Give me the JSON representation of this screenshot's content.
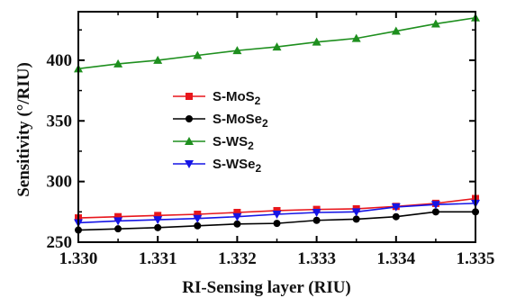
{
  "chart_data": {
    "type": "line",
    "xlabel": "RI-Sensing layer (RIU)",
    "ylabel": "Sensitivity (°/RIU)",
    "xlim": [
      1.33,
      1.335
    ],
    "ylim": [
      250,
      440
    ],
    "x_ticks": [
      "1.330",
      "1.331",
      "1.332",
      "1.333",
      "1.334",
      "1.335"
    ],
    "y_ticks": [
      "250",
      "300",
      "350",
      "400"
    ],
    "legend_position": "center-left",
    "x": [
      1.33,
      1.3305,
      1.331,
      1.3315,
      1.332,
      1.3325,
      1.333,
      1.3335,
      1.334,
      1.3345,
      1.335
    ],
    "series": [
      {
        "name": "S-MoS",
        "subscript": "2",
        "color": "#e8161c",
        "marker": "square",
        "values": [
          270,
          271,
          272,
          273,
          274.5,
          276,
          277,
          277.5,
          279.5,
          282,
          286
        ]
      },
      {
        "name": "S-MoSe",
        "subscript": "2",
        "color": "#000000",
        "marker": "circle",
        "values": [
          260,
          261,
          262,
          263.5,
          265,
          265.5,
          268,
          269,
          271,
          275,
          275
        ]
      },
      {
        "name": "S-WS",
        "subscript": "2",
        "color": "#1e8f1e",
        "marker": "triangle-up",
        "values": [
          393,
          397,
          400,
          404,
          408,
          411,
          415,
          418,
          424,
          430,
          435
        ]
      },
      {
        "name": "S-WSe",
        "subscript": "2",
        "color": "#1515e6",
        "marker": "triangle-down",
        "values": [
          266,
          267.5,
          268.5,
          269.5,
          271,
          273,
          274.5,
          275,
          279,
          281,
          282
        ]
      }
    ]
  }
}
